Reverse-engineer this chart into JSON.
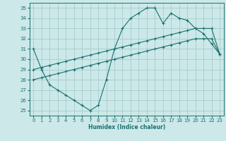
{
  "xlabel": "Humidex (Indice chaleur)",
  "xlim": [
    -0.5,
    23.5
  ],
  "ylim": [
    24.5,
    35.5
  ],
  "yticks": [
    25,
    26,
    27,
    28,
    29,
    30,
    31,
    32,
    33,
    34,
    35
  ],
  "xticks": [
    0,
    1,
    2,
    3,
    4,
    5,
    6,
    7,
    8,
    9,
    10,
    11,
    12,
    13,
    14,
    15,
    16,
    17,
    18,
    19,
    20,
    21,
    22,
    23
  ],
  "bg_color": "#cce8e8",
  "line_color": "#1a7070",
  "line1_x": [
    0,
    1,
    2,
    3,
    4,
    5,
    6,
    7,
    8,
    9,
    10,
    11,
    12,
    13,
    14,
    15,
    16,
    17,
    18,
    19,
    20,
    21,
    22,
    23
  ],
  "line1_y": [
    31,
    29,
    27.5,
    27,
    26.5,
    26,
    25.5,
    25,
    25.5,
    28,
    31,
    33,
    34,
    34.5,
    35,
    35,
    33.5,
    34.5,
    34,
    33.8,
    33,
    32.5,
    31.5,
    30.5
  ],
  "line2_x": [
    0,
    1,
    2,
    3,
    4,
    5,
    6,
    7,
    8,
    9,
    10,
    11,
    12,
    13,
    14,
    15,
    16,
    17,
    18,
    19,
    20,
    21,
    22,
    23
  ],
  "line2_y": [
    29.0,
    29.2,
    29.4,
    29.6,
    29.8,
    30.0,
    30.2,
    30.4,
    30.6,
    30.8,
    31.0,
    31.2,
    31.4,
    31.6,
    31.8,
    32.0,
    32.2,
    32.4,
    32.6,
    32.8,
    33.0,
    33.0,
    33.0,
    30.5
  ],
  "line3_x": [
    0,
    1,
    2,
    3,
    4,
    5,
    6,
    7,
    8,
    9,
    10,
    11,
    12,
    13,
    14,
    15,
    16,
    17,
    18,
    19,
    20,
    21,
    22,
    23
  ],
  "line3_y": [
    28.0,
    28.2,
    28.4,
    28.6,
    28.8,
    29.0,
    29.2,
    29.4,
    29.6,
    29.8,
    30.0,
    30.2,
    30.4,
    30.6,
    30.8,
    31.0,
    31.2,
    31.4,
    31.6,
    31.8,
    32.0,
    32.0,
    32.0,
    30.5
  ]
}
